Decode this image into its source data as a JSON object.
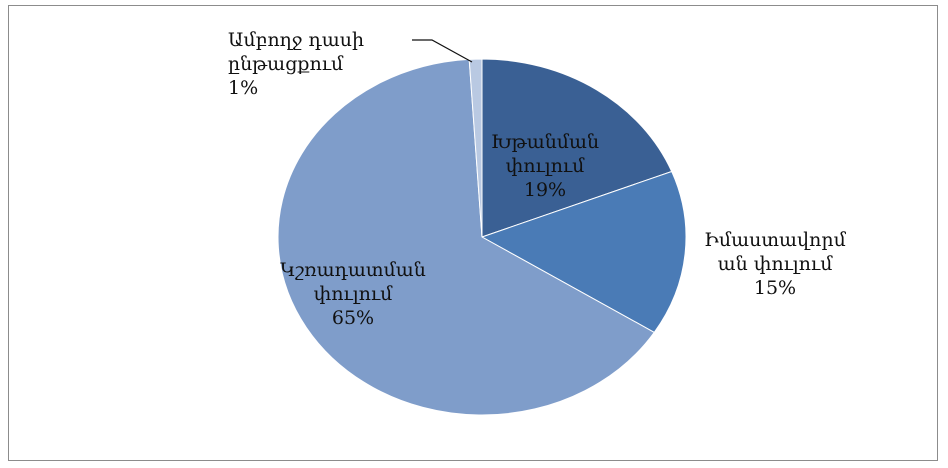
{
  "chart_data": {
    "type": "pie",
    "categories": [
      "Խթանման փուլում",
      "Իմաստավորման փուլում",
      "Կշռադատման փուլում",
      "Ամբողջ դասի ընթացքում"
    ],
    "values": [
      19,
      15,
      65,
      1
    ],
    "value_labels": [
      "19%",
      "15%",
      "65%",
      "1%"
    ],
    "colors": [
      "#3a6094",
      "#4a7bb6",
      "#7f9dca",
      "#b9c9e2"
    ]
  }
}
